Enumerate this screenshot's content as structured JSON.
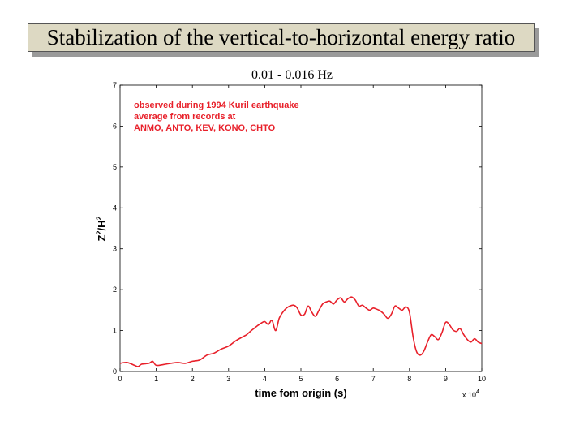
{
  "slide": {
    "title": "Stabilization of the vertical-to-horizontal energy ratio",
    "subtitle": "0.01 - 0.016 Hz"
  },
  "chart_data": {
    "type": "line",
    "title": "",
    "xlabel": "time fom origin (s)",
    "x_multiplier": "x 10",
    "x_multiplier_exp": "4",
    "ylabel": "Z",
    "ylabel_sup1": "2",
    "ylabel_mid": "/H",
    "ylabel_sup2": "2",
    "xlim": [
      0,
      10
    ],
    "ylim": [
      0,
      7
    ],
    "xticks": [
      "0",
      "1",
      "2",
      "3",
      "4",
      "5",
      "6",
      "7",
      "8",
      "9",
      "10"
    ],
    "yticks": [
      "0",
      "1",
      "2",
      "3",
      "4",
      "5",
      "6",
      "7"
    ],
    "annotation": [
      "observed during 1994 Kuril earthquake",
      "average from records at",
      "ANMO, ANTO, KEV, KONO, CHTO"
    ],
    "colors": {
      "series": "#e8202a",
      "annotation": "#e8202a"
    },
    "series": [
      {
        "x": [
          0,
          0.2,
          0.4,
          0.5,
          0.6,
          0.8,
          0.9,
          1.0,
          1.2,
          1.4,
          1.6,
          1.8,
          2.0,
          2.2,
          2.4,
          2.6,
          2.8,
          3.0,
          3.2,
          3.4,
          3.5,
          3.6,
          3.7,
          3.8,
          3.9,
          4.0,
          4.1,
          4.2,
          4.3,
          4.4,
          4.5,
          4.6,
          4.7,
          4.8,
          4.9,
          5.0,
          5.1,
          5.2,
          5.3,
          5.4,
          5.5,
          5.6,
          5.7,
          5.8,
          5.9,
          6.0,
          6.1,
          6.2,
          6.3,
          6.4,
          6.5,
          6.6,
          6.7,
          6.8,
          6.9,
          7.0,
          7.1,
          7.2,
          7.3,
          7.4,
          7.5,
          7.6,
          7.7,
          7.8,
          7.9,
          8.0,
          8.1,
          8.2,
          8.3,
          8.4,
          8.5,
          8.6,
          8.7,
          8.8,
          8.9,
          9.0,
          9.1,
          9.2,
          9.3,
          9.4,
          9.5,
          9.6,
          9.7,
          9.8,
          9.9,
          10.0
        ],
        "y": [
          0.2,
          0.22,
          0.15,
          0.12,
          0.18,
          0.2,
          0.25,
          0.15,
          0.17,
          0.2,
          0.22,
          0.2,
          0.25,
          0.28,
          0.4,
          0.45,
          0.55,
          0.62,
          0.75,
          0.85,
          0.9,
          0.98,
          1.05,
          1.12,
          1.18,
          1.22,
          1.15,
          1.25,
          1.0,
          1.3,
          1.45,
          1.55,
          1.6,
          1.62,
          1.55,
          1.38,
          1.4,
          1.6,
          1.45,
          1.35,
          1.5,
          1.65,
          1.7,
          1.72,
          1.65,
          1.75,
          1.8,
          1.7,
          1.78,
          1.82,
          1.75,
          1.6,
          1.62,
          1.55,
          1.5,
          1.55,
          1.52,
          1.48,
          1.4,
          1.3,
          1.4,
          1.6,
          1.55,
          1.5,
          1.58,
          1.45,
          0.85,
          0.48,
          0.4,
          0.5,
          0.72,
          0.9,
          0.85,
          0.78,
          0.95,
          1.2,
          1.15,
          1.02,
          0.98,
          1.05,
          0.9,
          0.78,
          0.72,
          0.8,
          0.72,
          0.68
        ]
      }
    ]
  }
}
